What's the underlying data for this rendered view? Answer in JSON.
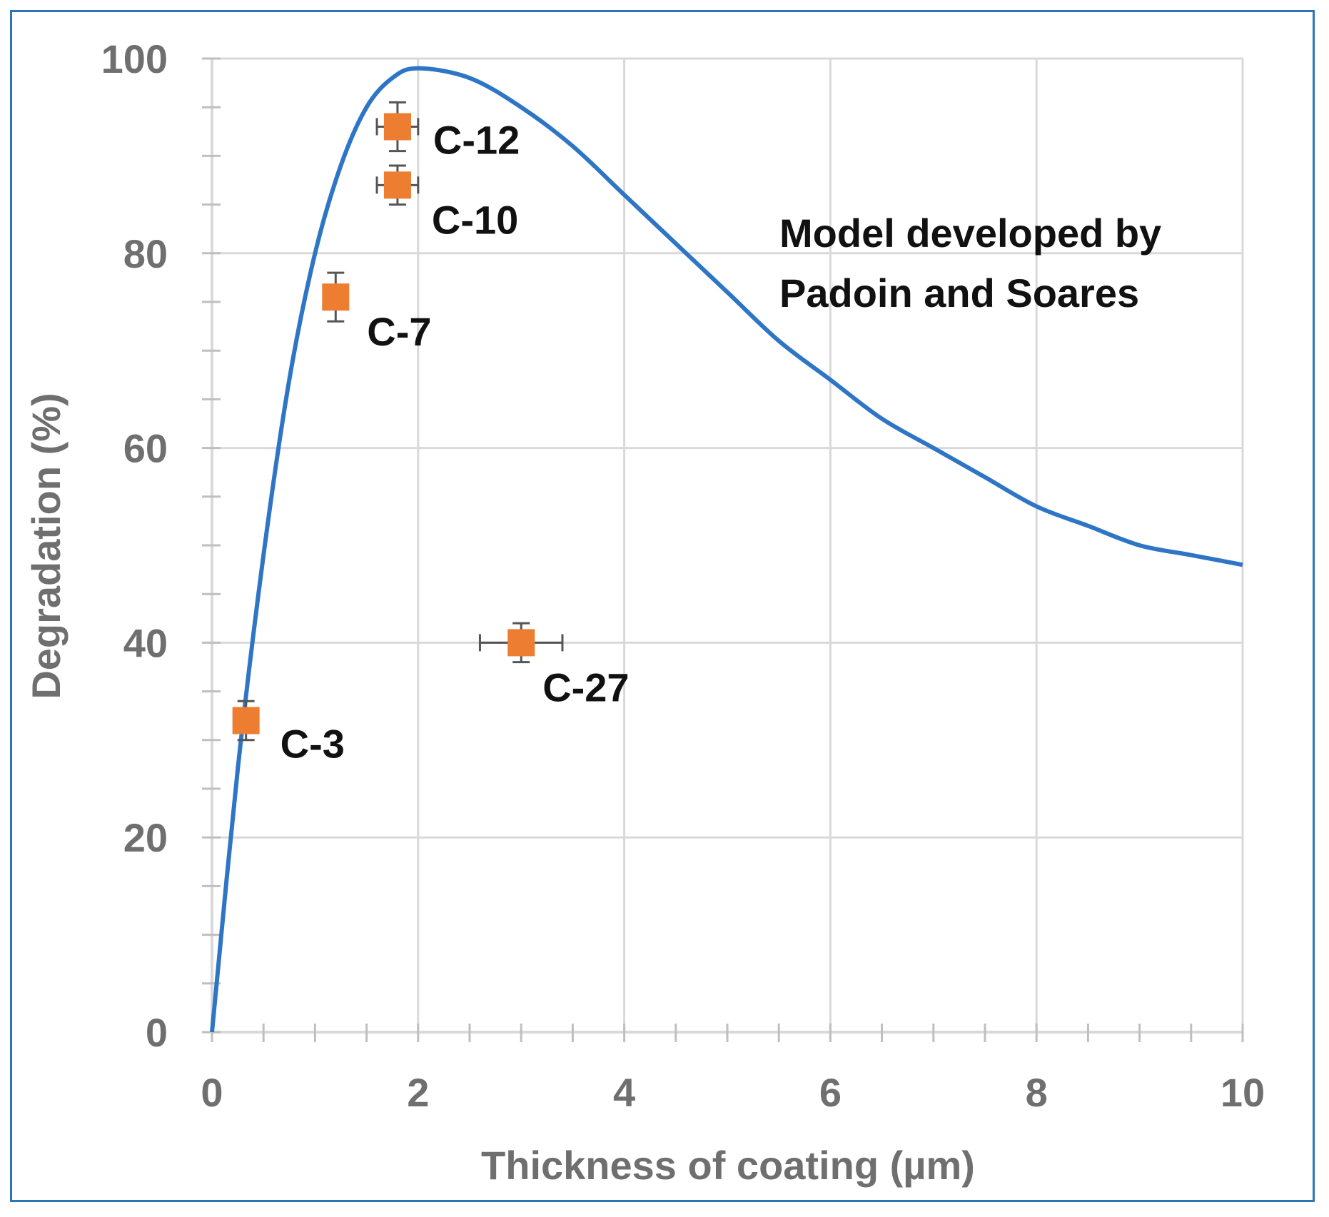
{
  "chart_data": {
    "type": "scatter",
    "xlabel": "Thickness of coating (µm)",
    "ylabel": "Degradation (%)",
    "xlim": [
      0,
      10
    ],
    "ylim": [
      0,
      100
    ],
    "x_ticks": [
      "0",
      "2",
      "4",
      "6",
      "8",
      "10"
    ],
    "y_ticks": [
      "0",
      "20",
      "40",
      "60",
      "80",
      "100"
    ],
    "grid": true,
    "annotation": [
      "Model developed by",
      "Padoin and Soares"
    ],
    "model_curve": {
      "color": "#2e75c6",
      "x": [
        0,
        0.25,
        0.5,
        0.75,
        1.0,
        1.25,
        1.5,
        1.75,
        2.0,
        2.5,
        3.0,
        3.5,
        4.0,
        4.5,
        5.0,
        5.5,
        6.0,
        6.5,
        7.0,
        7.5,
        8.0,
        8.5,
        9.0,
        9.5,
        10.0
      ],
      "y": [
        0,
        27,
        49,
        67,
        80,
        89,
        95,
        98,
        99,
        98,
        95,
        91,
        86,
        81,
        76,
        71,
        67,
        63,
        60,
        57,
        54,
        52,
        50,
        49,
        48
      ]
    },
    "points": {
      "color": "#ed7d31",
      "values": [
        {
          "label": "C-3",
          "x": 0.33,
          "y": 32,
          "xerr": 0.1,
          "yerr": 2
        },
        {
          "label": "C-7",
          "x": 1.2,
          "y": 75.5,
          "xerr": 0.1,
          "yerr": 2.5
        },
        {
          "label": "C-10",
          "x": 1.8,
          "y": 87,
          "xerr": 0.2,
          "yerr": 2
        },
        {
          "label": "C-12",
          "x": 1.8,
          "y": 93,
          "xerr": 0.2,
          "yerr": 2.5
        },
        {
          "label": "C-27",
          "x": 3.0,
          "y": 40,
          "xerr": 0.4,
          "yerr": 2
        }
      ]
    }
  }
}
